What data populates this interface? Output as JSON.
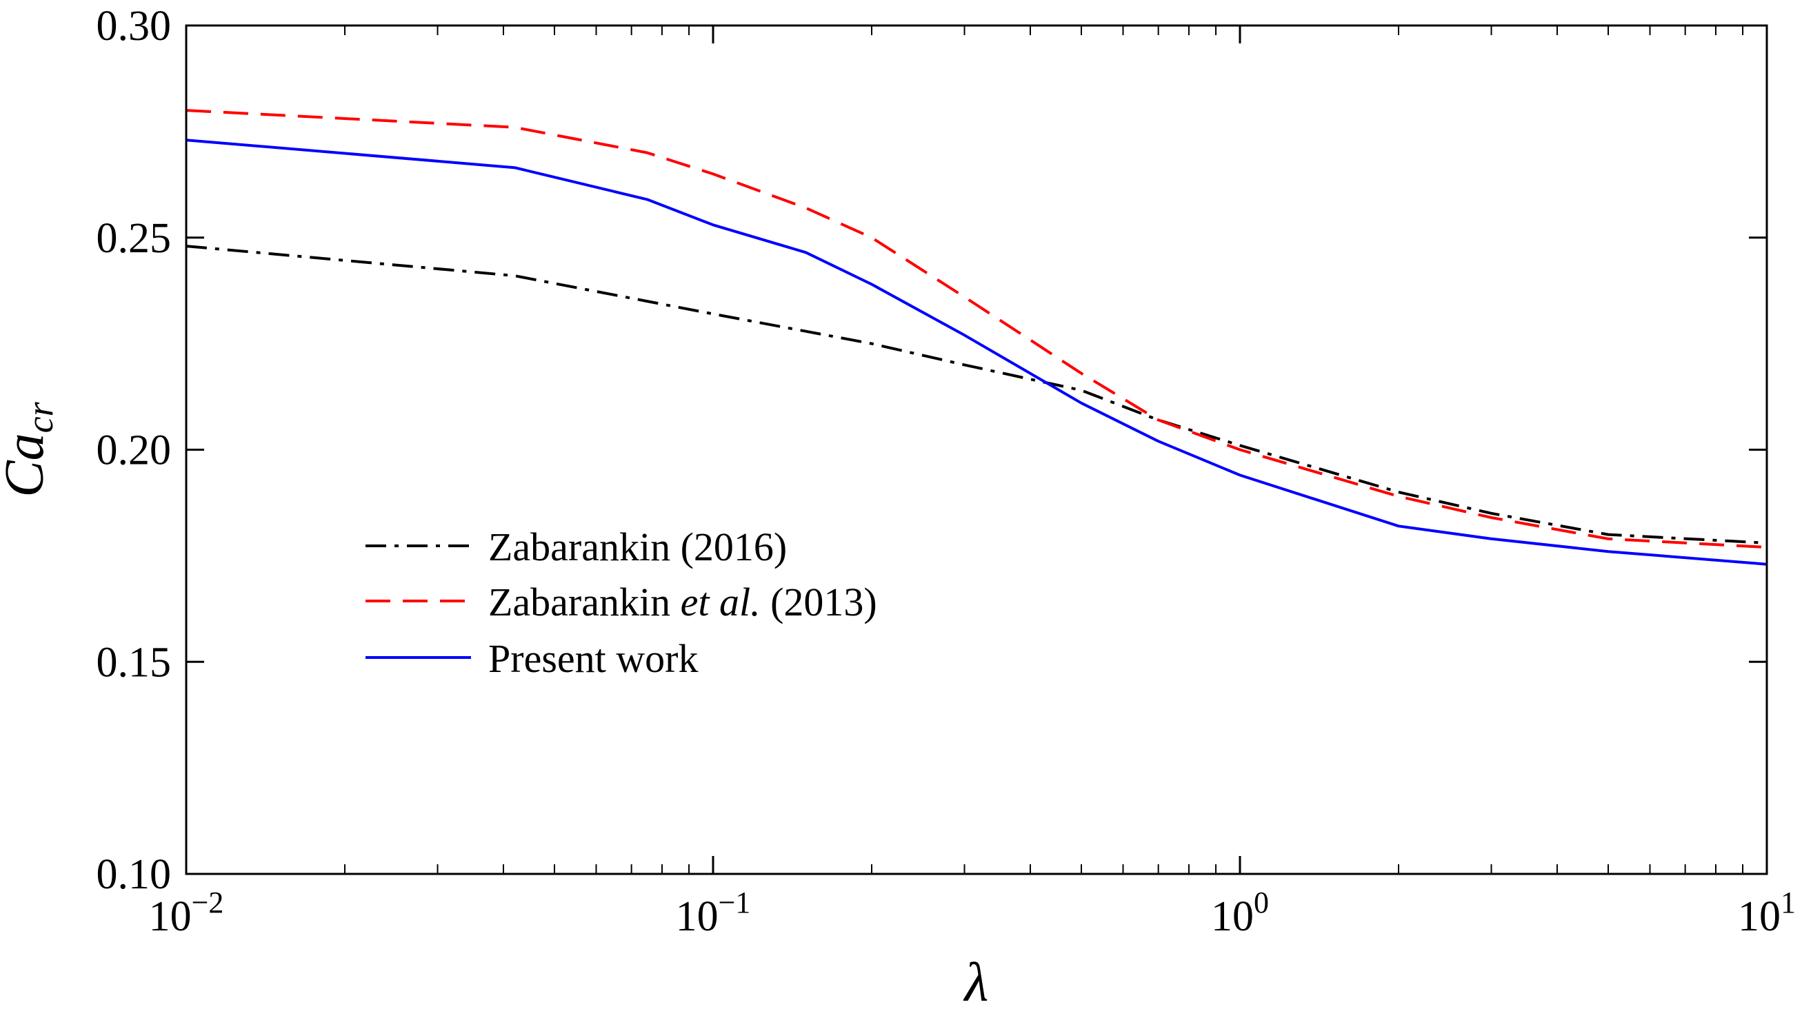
{
  "chart_data": {
    "type": "line",
    "xscale": "log",
    "xlim": [
      0.01,
      10
    ],
    "ylim": [
      0.1,
      0.3
    ],
    "xlabel": "λ",
    "ylabel": {
      "base": "Ca",
      "sub": "cr"
    },
    "grid": false,
    "legend_position": "center-left",
    "xticks": [
      {
        "value": 0.01,
        "base": "10",
        "exp": "−2"
      },
      {
        "value": 0.1,
        "base": "10",
        "exp": "−1"
      },
      {
        "value": 1,
        "base": "10",
        "exp": "0"
      },
      {
        "value": 10,
        "base": "10",
        "exp": "1"
      }
    ],
    "yticks": [
      "0.10",
      "0.15",
      "0.20",
      "0.25",
      "0.30"
    ],
    "series": [
      {
        "name": "Zabarankin (2016)",
        "legend": {
          "before": "Zabarankin ",
          "italic": "",
          "after": "(2016)"
        },
        "color": "#000000",
        "style": "dashdot",
        "x": [
          0.01,
          0.042,
          0.075,
          0.1,
          0.2,
          0.3,
          0.5,
          0.7,
          1.0,
          2.0,
          3.0,
          5.0,
          10.0
        ],
        "y": [
          0.248,
          0.241,
          0.235,
          0.232,
          0.225,
          0.22,
          0.214,
          0.207,
          0.201,
          0.19,
          0.185,
          0.18,
          0.178
        ]
      },
      {
        "name": "Zabarankin et al. (2013)",
        "legend": {
          "before": "Zabarankin ",
          "italic": "et al.",
          "after": " (2013)"
        },
        "color": "#ff0000",
        "style": "dashed",
        "x": [
          0.01,
          0.042,
          0.075,
          0.1,
          0.15,
          0.2,
          0.3,
          0.5,
          0.7,
          1.0,
          2.0,
          3.0,
          5.0,
          10.0
        ],
        "y": [
          0.28,
          0.276,
          0.27,
          0.265,
          0.257,
          0.25,
          0.236,
          0.218,
          0.207,
          0.2,
          0.189,
          0.184,
          0.179,
          0.177
        ]
      },
      {
        "name": "Present work",
        "legend": {
          "before": "Present work",
          "italic": "",
          "after": ""
        },
        "color": "#0000ff",
        "style": "solid",
        "x": [
          0.01,
          0.042,
          0.075,
          0.1,
          0.15,
          0.2,
          0.3,
          0.5,
          0.7,
          1.0,
          2.0,
          3.0,
          5.0,
          10.0
        ],
        "y": [
          0.273,
          0.2665,
          0.259,
          0.253,
          0.2465,
          0.239,
          0.227,
          0.211,
          0.202,
          0.194,
          0.182,
          0.179,
          0.176,
          0.173
        ]
      }
    ]
  }
}
